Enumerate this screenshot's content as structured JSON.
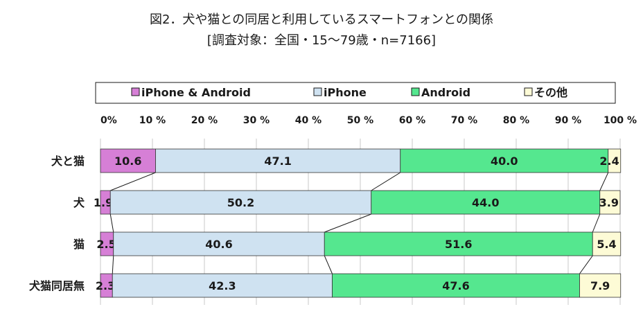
{
  "chart_data": {
    "type": "bar",
    "stacked": "100%",
    "orientation": "horizontal",
    "title": "図2．犬や猫との同居と利用しているスマートフォンとの関係",
    "subtitle": "[調査対象：全国・15～79歳・n=7166]",
    "categories": [
      "犬と猫",
      "犬",
      "猫",
      "犬猫同居無"
    ],
    "series": [
      {
        "name": "iPhone  & Android",
        "color": "#d67fd6",
        "values": [
          10.6,
          1.9,
          2.5,
          2.3
        ]
      },
      {
        "name": "iPhone",
        "color": "#cfe2f1",
        "values": [
          47.1,
          50.2,
          40.6,
          42.3
        ]
      },
      {
        "name": "Android",
        "color": "#55e78f",
        "values": [
          40.0,
          44.0,
          51.6,
          47.6
        ]
      },
      {
        "name": "その他",
        "color": "#fdfbd6",
        "values": [
          2.4,
          3.9,
          5.4,
          7.9
        ]
      }
    ],
    "xlim": [
      0,
      100
    ],
    "xticks": [
      "0%",
      "10 %",
      "20 %",
      "30 %",
      "40 %",
      "50 %",
      "60 %",
      "70 %",
      "80 %",
      "90 %",
      "100 %"
    ],
    "legend_position": "top",
    "grid": true
  }
}
